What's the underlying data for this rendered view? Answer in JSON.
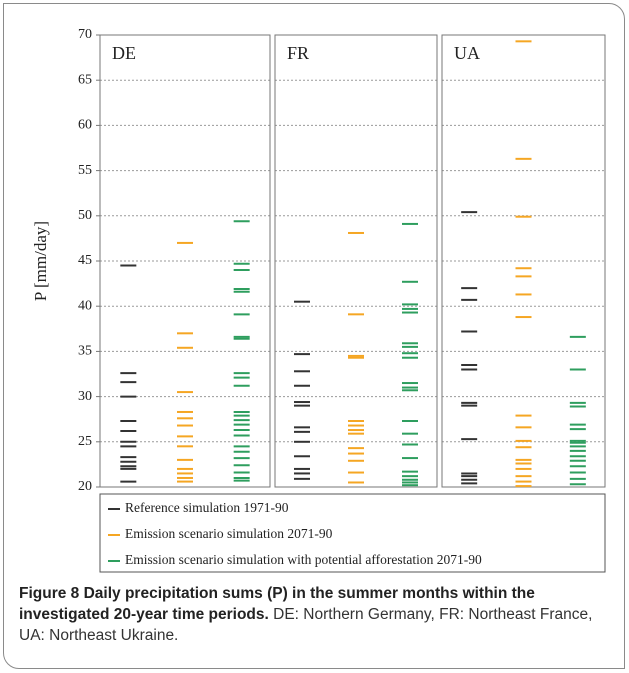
{
  "chart_data": {
    "type": "strip",
    "ylabel": "P [mm/day]",
    "ylim": [
      20,
      70
    ],
    "yticks": [
      20,
      25,
      30,
      35,
      40,
      45,
      50,
      55,
      60,
      65,
      70
    ],
    "grid": true,
    "series": [
      {
        "name": "Reference simulation 1971-90",
        "color": "#333333"
      },
      {
        "name": "Emission scenario simulation 2071-90",
        "color": "#f5a623"
      },
      {
        "name": "Emission scenario simulation with potential afforestation 2071-90",
        "color": "#2e9e5e"
      }
    ],
    "panels": [
      {
        "title": "DE",
        "values": [
          [
            44.5,
            32.6,
            31.6,
            30.0,
            27.3,
            26.2,
            25.0,
            24.5,
            23.3,
            22.8,
            22.3,
            22.0,
            20.6
          ],
          [
            47.0,
            37.0,
            35.4,
            30.5,
            28.3,
            27.6,
            26.8,
            25.6,
            24.5,
            23.0,
            22.0,
            21.5,
            21.0,
            20.6
          ],
          [
            49.4,
            44.7,
            44.0,
            41.9,
            41.6,
            39.1,
            36.6,
            36.4,
            32.6,
            32.1,
            31.2,
            28.3,
            27.9,
            27.4,
            26.9,
            26.3,
            25.7,
            24.5,
            23.9,
            23.2,
            22.4,
            21.6,
            21.0,
            20.7
          ]
        ]
      },
      {
        "title": "FR",
        "values": [
          [
            40.5,
            34.7,
            32.8,
            31.2,
            29.4,
            29.0,
            26.6,
            26.1,
            25.0,
            23.4,
            22.0,
            21.5,
            20.9
          ],
          [
            48.1,
            39.1,
            34.5,
            34.3,
            27.3,
            26.8,
            26.3,
            25.9,
            24.3,
            23.7,
            22.9,
            21.6,
            20.5
          ],
          [
            49.1,
            42.7,
            40.2,
            39.7,
            39.3,
            35.9,
            35.5,
            34.8,
            34.3,
            31.5,
            31.0,
            30.7,
            27.3,
            25.9,
            24.7,
            23.2,
            21.7,
            21.2,
            20.8,
            20.5,
            20.2
          ]
        ]
      },
      {
        "title": "UA",
        "values": [
          [
            50.4,
            42.0,
            40.7,
            37.2,
            33.5,
            33.0,
            29.3,
            29.0,
            25.3,
            21.5,
            21.2,
            20.8,
            20.4
          ],
          [
            69.3,
            56.3,
            49.9,
            44.2,
            43.3,
            41.3,
            38.8,
            27.9,
            26.6,
            25.1,
            24.4,
            23.0,
            22.6,
            22.0,
            21.2,
            20.6,
            20.1
          ],
          [
            36.6,
            33.0,
            29.3,
            28.9,
            26.9,
            26.4,
            25.1,
            24.9,
            24.5,
            24.0,
            23.4,
            22.9,
            22.3,
            21.6,
            20.9,
            20.3
          ]
        ]
      }
    ]
  },
  "caption": {
    "label": "Figure 8",
    "title": "Daily precipitation sums (P) in the summer months within the investigated 20-year time periods.",
    "text": "DE: Northern Germany, FR: Northeast France, UA: Northeast Ukraine."
  }
}
